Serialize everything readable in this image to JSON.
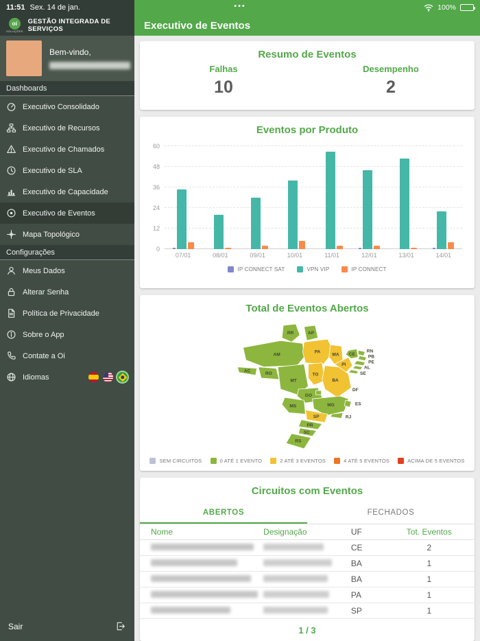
{
  "status_bar": {
    "time": "11:51",
    "date": "Sex. 14 de jan.",
    "more_dots": "•••",
    "battery_percent": "100%"
  },
  "sidebar": {
    "logo": {
      "text": "oi",
      "subtext": "SOLUÇÕES"
    },
    "app_title": "GESTÃO INTEGRADA DE SERVIÇOS",
    "welcome_label": "Bem-vindo,",
    "user_name_redacted": true,
    "sections": {
      "dashboards": "Dashboards",
      "settings": "Configurações"
    },
    "dashboard_items": [
      {
        "label": "Executivo Consolidado",
        "icon": "gauge-icon",
        "active": false
      },
      {
        "label": "Executivo de Recursos",
        "icon": "sitemap-icon",
        "active": false
      },
      {
        "label": "Executivo de Chamados",
        "icon": "alert-triangle-icon",
        "active": false
      },
      {
        "label": "Executivo de SLA",
        "icon": "clock-icon",
        "active": false
      },
      {
        "label": "Executivo de Capacidade",
        "icon": "bar-chart-icon",
        "active": false
      },
      {
        "label": "Executivo de Eventos",
        "icon": "target-icon",
        "active": true
      },
      {
        "label": "Mapa Topológico",
        "icon": "topology-icon",
        "active": false
      }
    ],
    "settings_items": [
      {
        "label": "Meus Dados",
        "icon": "user-icon"
      },
      {
        "label": "Alterar Senha",
        "icon": "lock-icon"
      },
      {
        "label": "Política de Privacidade",
        "icon": "document-icon"
      },
      {
        "label": "Sobre o App",
        "icon": "info-icon"
      },
      {
        "label": "Contate a Oi",
        "icon": "phone-icon"
      },
      {
        "label": "Idiomas",
        "icon": "globe-icon",
        "flags": [
          "spain-flag",
          "usa-flag",
          "brazil-flag"
        ],
        "active_flag": "brazil-flag"
      }
    ],
    "logout_label": "Sair"
  },
  "header": {
    "title": "Executivo de Eventos"
  },
  "summary": {
    "title": "Resumo de Eventos",
    "metrics": [
      {
        "label": "Falhas",
        "value": "10"
      },
      {
        "label": "Desempenho",
        "value": "2"
      }
    ]
  },
  "chart_data": {
    "type": "bar",
    "title": "Eventos por Produto",
    "categories": [
      "07/01",
      "08/01",
      "09/01",
      "10/01",
      "11/01",
      "12/01",
      "13/01",
      "14/01"
    ],
    "series": [
      {
        "name": "IP CONNECT SAT",
        "color": "#8087ce",
        "values": [
          1,
          0,
          0,
          0,
          0,
          1,
          0,
          1
        ]
      },
      {
        "name": "VPN VIP",
        "color": "#45b7a8",
        "values": [
          35,
          20,
          30,
          40,
          57,
          46,
          53,
          22
        ]
      },
      {
        "name": "IP CONNECT",
        "color": "#fb8a49",
        "values": [
          4,
          1,
          2,
          5,
          2,
          2,
          1,
          4
        ]
      }
    ],
    "xlabel": "",
    "ylabel": "",
    "ylim": [
      0,
      60
    ],
    "yticks": [
      0,
      12,
      24,
      36,
      48,
      60
    ],
    "grid": true,
    "legend_position": "bottom"
  },
  "map": {
    "title": "Total de Eventos Abertos",
    "legend": [
      {
        "label": "SEM CIRCUITOS",
        "color": "#bcc2d6"
      },
      {
        "label": "0 ATÉ 1 EVENTO",
        "color": "#8db63e"
      },
      {
        "label": "2 ATÉ 3 EVENTOS",
        "color": "#f1c232"
      },
      {
        "label": "4 ATÉ 5 EVENTOS",
        "color": "#ee7623"
      },
      {
        "label": "ACIMA DE 5 EVENTOS",
        "color": "#e2401f"
      }
    ],
    "state_levels": {
      "RR": 1,
      "AP": 1,
      "AM": 1,
      "PA": 2,
      "MA": 2,
      "CE": 1,
      "RN": 1,
      "PB": 1,
      "PE": 1,
      "AL": 1,
      "SE": 1,
      "PI": 2,
      "AC": 1,
      "RO": 1,
      "MT": 1,
      "TO": 2,
      "BA": 2,
      "GO": 1,
      "DF": 1,
      "MG": 1,
      "ES": 1,
      "RJ": 1,
      "MS": 1,
      "SP": 2,
      "PR": 1,
      "SC": 1,
      "RS": 1
    }
  },
  "circuits": {
    "title": "Circuitos com Eventos",
    "tabs": [
      {
        "label": "ABERTOS",
        "active": true
      },
      {
        "label": "FECHADOS",
        "active": false
      }
    ],
    "columns": [
      "Nome",
      "Designação",
      "UF",
      "Tot. Eventos"
    ],
    "rows": [
      {
        "nome_redacted": true,
        "designacao_redacted": true,
        "uf": "CE",
        "total": "2"
      },
      {
        "nome_redacted": true,
        "designacao_redacted": true,
        "uf": "BA",
        "total": "1"
      },
      {
        "nome_redacted": true,
        "designacao_redacted": true,
        "uf": "BA",
        "total": "1"
      },
      {
        "nome_redacted": true,
        "designacao_redacted": true,
        "uf": "PA",
        "total": "1"
      },
      {
        "nome_redacted": true,
        "designacao_redacted": true,
        "uf": "SP",
        "total": "1"
      }
    ],
    "pagination": "1 / 3"
  }
}
